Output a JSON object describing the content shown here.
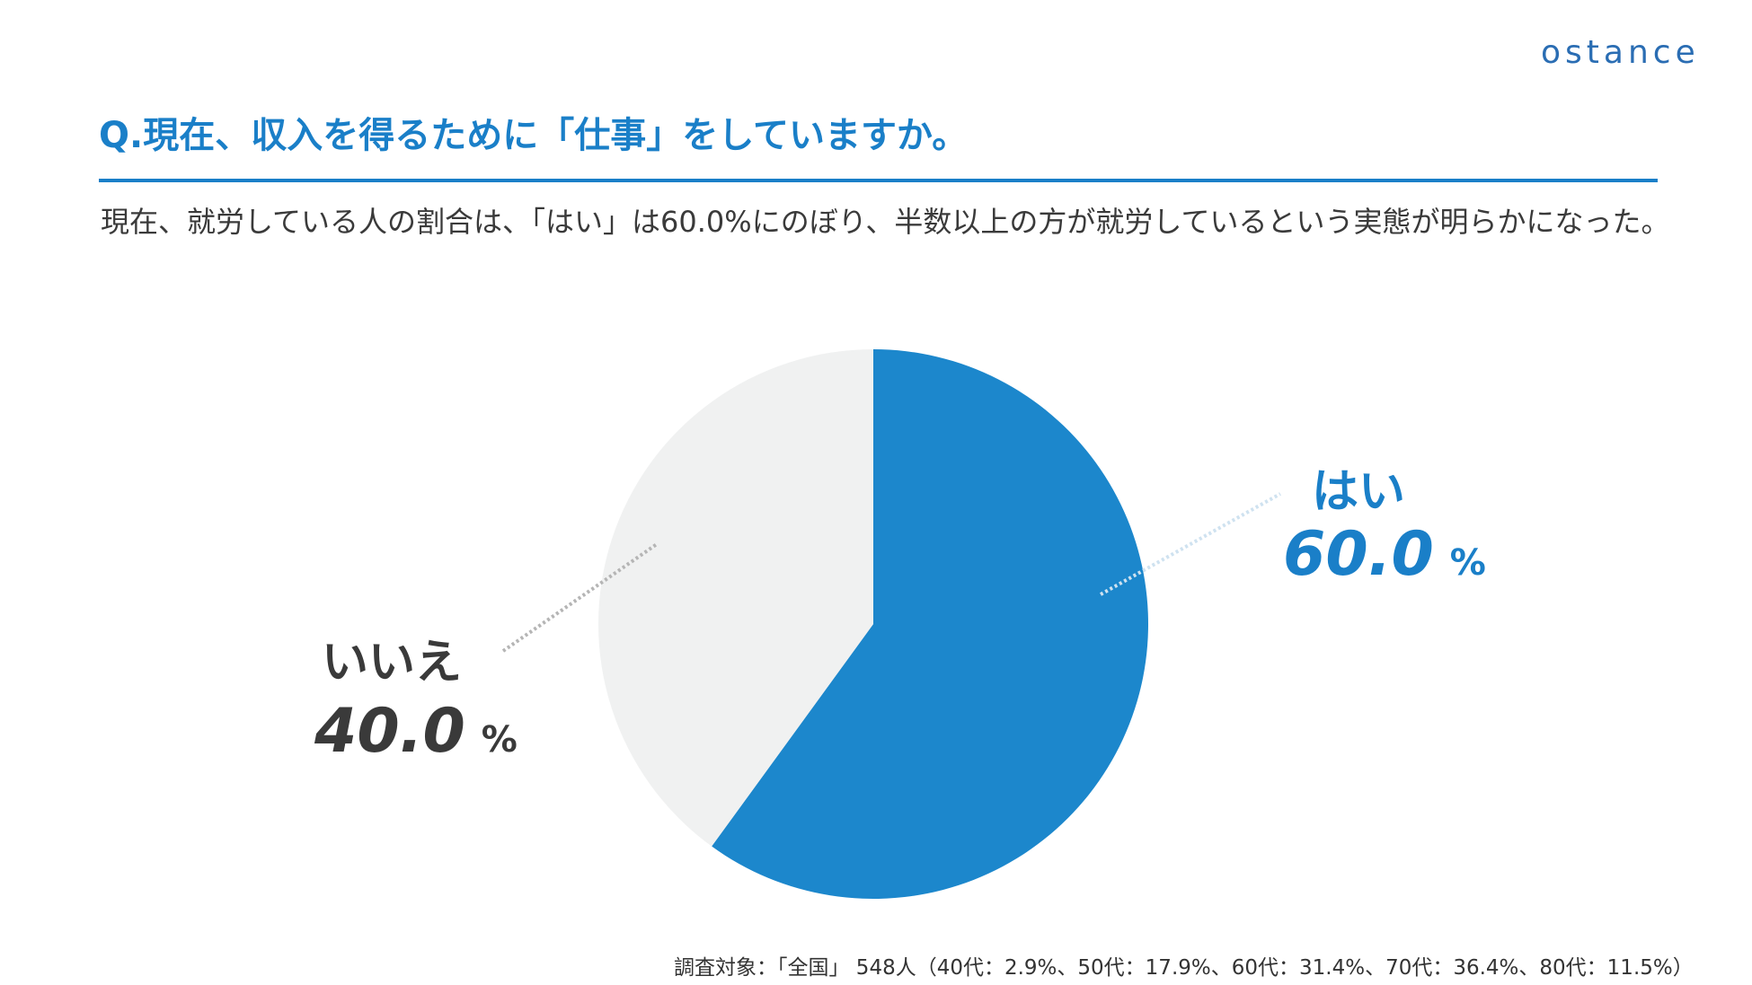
{
  "logo": "ostance",
  "title": "Q.現在、収入を得るために「仕事」をしていますか。",
  "description": "現在、就労している人の割合は、「はい」は60.0%にのぼり、半数以上の方が就労しているという実態が明らかになった。",
  "footnote": "調査対象：「全国」 548人（40代：2.9%、50代：17.9%、60代：31.4%、70代：36.4%、80代：11.5%）",
  "chart_data": {
    "type": "pie",
    "categories": [
      "はい",
      "いいえ"
    ],
    "values": [
      60.0,
      40.0
    ],
    "value_labels": [
      "60.0",
      "40.0"
    ],
    "unit": "%",
    "colors": [
      "#1c87cc",
      "#f0f1f1"
    ],
    "start": "top, clockwise"
  }
}
